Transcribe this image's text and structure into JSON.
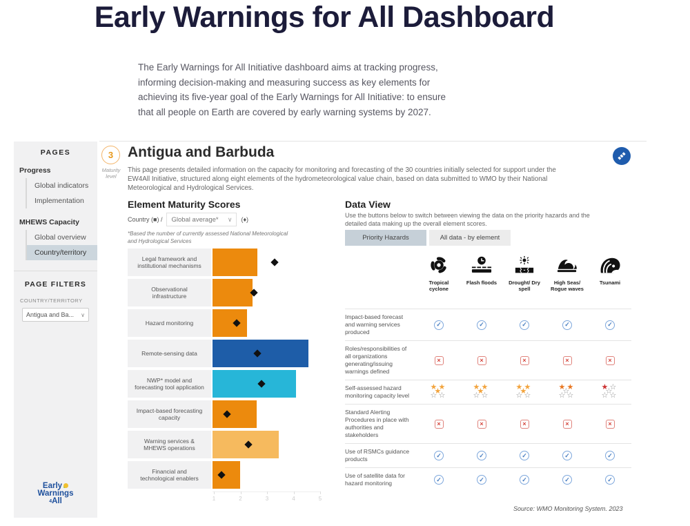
{
  "page": {
    "title": "Early Warnings for All Dashboard",
    "intro": "The Early Warnings for All Initiative dashboard aims at tracking progress,\ninforming decision-making and measuring success as key elements for\nachieving its five-year goal of the Early Warnings for All Initiative: to ensure\nthat all people on Earth are covered by early warning systems by 2027."
  },
  "sidebar": {
    "pages_header": "PAGES",
    "groups": [
      {
        "label": "Progress",
        "items": [
          "Global indicators",
          "Implementation"
        ],
        "selected": ""
      },
      {
        "label": "MHEWS Capacity",
        "items": [
          "Global overview",
          "Country/territory"
        ],
        "selected": "Country/territory"
      }
    ],
    "filters_header": "PAGE FILTERS",
    "filter_label": "COUNTRY/TERRITORY",
    "filter_value": "Antigua and Ba...",
    "logo_lines": [
      "Early",
      "Warnings",
      "All"
    ],
    "logo_small": "4"
  },
  "header": {
    "maturity_value": "3",
    "maturity_label": "Maturity level",
    "country_title": "Antigua and Barbuda",
    "description": "This page presents detailed information on the capacity for monitoring and forecasting of the 30 countries initially selected for support under the\nEW4All Initiative, structured along eight elements of the hydrometeorological value chain, based on data submitted to WMO by their National\nMeteorological and Hydrological Services."
  },
  "chart_data": {
    "type": "bar",
    "title": "Element Maturity Scores",
    "control_prefix": "Country (■) /",
    "dropdown_value": "Global average*",
    "control_suffix": "(♦)",
    "footnote": "*Based the number of currently assessed National Meteorological\nand Hydrological Services",
    "categories": [
      "Legal framework and institutional mechanisms",
      "Observational infrastructure",
      "Hazard monitoring",
      "Remote-sensing data",
      "NWP* model and forecasting tool application",
      "Impact-based forecasting capacity",
      "Warning services & MHEWS operations",
      "Financial and technological enablers"
    ],
    "series": [
      {
        "name": "Country",
        "values": [
          2.7,
          2.5,
          2.3,
          4.6,
          4.15,
          2.65,
          3.5,
          2.05
        ]
      },
      {
        "name": "Global average",
        "values": [
          3.35,
          2.55,
          1.9,
          2.7,
          2.85,
          1.55,
          2.35,
          1.35
        ]
      }
    ],
    "bar_colors": [
      "#EC8A0D",
      "#EC8A0D",
      "#EC8A0D",
      "#1E5DA8",
      "#27B6D8",
      "#EC8A0D",
      "#F6BA5E",
      "#EC8A0D"
    ],
    "xlim": [
      1,
      5
    ],
    "x_ticks": [
      1,
      2,
      3,
      4,
      5
    ]
  },
  "data_view": {
    "title": "Data View",
    "description": "Use the buttons below to switch between viewing the data on the priority hazards and the\ndetailed data making up the overall element scores.",
    "buttons": [
      {
        "label": "Priority Hazards",
        "active": true
      },
      {
        "label": "All data - by element",
        "active": false
      }
    ],
    "hazards": [
      {
        "label": "Tropical\ncyclone",
        "icon": "cyclone-icon"
      },
      {
        "label": "Flash floods",
        "icon": "flood-icon"
      },
      {
        "label": "Drought/ Dry\nspell",
        "icon": "drought-icon"
      },
      {
        "label": "High Seas/\nRogue waves",
        "icon": "wave-icon"
      },
      {
        "label": "Tsunami",
        "icon": "tsunami-icon"
      }
    ],
    "rows": [
      {
        "label": "Impact-based forecast and warning services produced",
        "values": [
          "check",
          "check",
          "check",
          "check",
          "check"
        ]
      },
      {
        "label": "Roles/responsibilities of all organizations generating/issuing warnings defined",
        "values": [
          "cross",
          "cross",
          "cross",
          "cross",
          "cross"
        ]
      },
      {
        "label": "Self-assessed hazard monitoring capacity level",
        "values": [
          "stars:3",
          "stars:3",
          "stars:3",
          "stars:2",
          "stars:1"
        ]
      },
      {
        "label": "Standard Alerting Procedures in place with authorities and stakeholders",
        "values": [
          "cross",
          "cross",
          "cross",
          "cross",
          "cross"
        ]
      },
      {
        "label": "Use of RSMCs guidance products",
        "values": [
          "check",
          "check",
          "check",
          "check",
          "check"
        ]
      },
      {
        "label": "Use of satellite data for hazard monitoring",
        "values": [
          "check",
          "check",
          "check",
          "check",
          "check"
        ]
      }
    ],
    "source": "Source: WMO Monitoring System. 2023",
    "star_colors": {
      "3": "#F2A33C",
      "2": "#E87722",
      "1": "#CC3333"
    }
  }
}
